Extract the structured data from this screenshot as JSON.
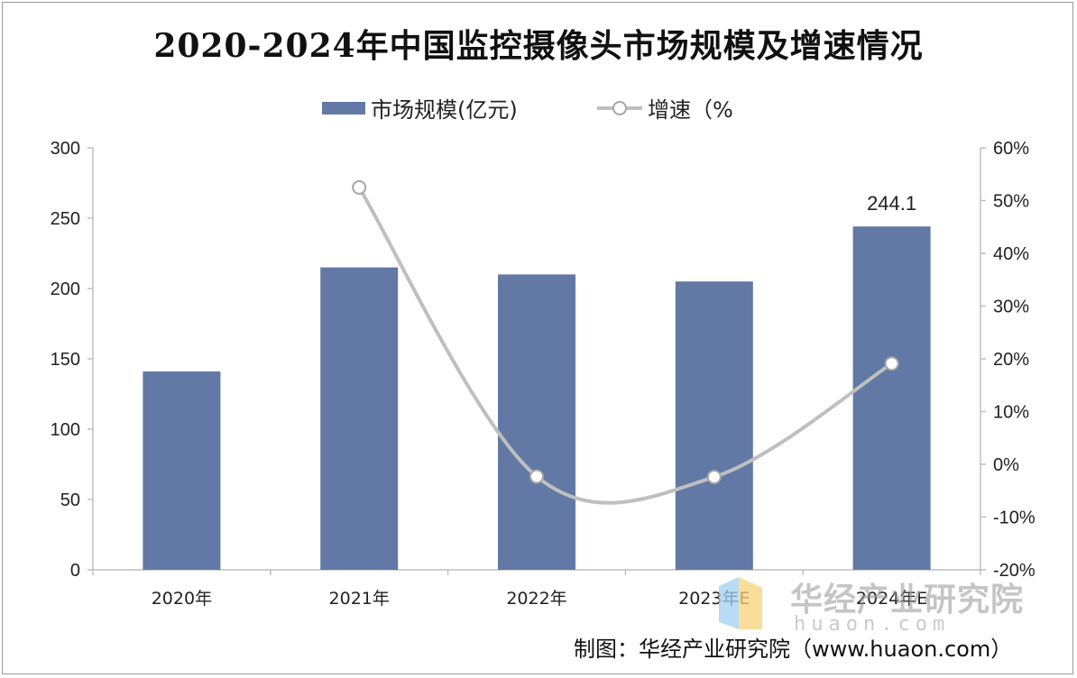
{
  "chart_data": {
    "type": "bar+line",
    "title": "2020-2024年中国监控摄像头市场规模及增速情况",
    "categories": [
      "2020年",
      "2021年",
      "2022年",
      "2023年E",
      "2024年E"
    ],
    "series": [
      {
        "name": "市场规模(亿元)",
        "type": "bar",
        "axis": "left",
        "color": "#6279a5",
        "values": [
          141,
          215,
          210,
          205,
          244.1
        ]
      },
      {
        "name": "增速(%)",
        "type": "line",
        "axis": "right",
        "color": "#bfbfbf",
        "values": [
          null,
          52.5,
          -2.3,
          -2.4,
          19.1
        ]
      }
    ],
    "left_axis": {
      "min": 0,
      "max": 300,
      "ticks": [
        "0",
        "50",
        "100",
        "150",
        "200",
        "250",
        "300"
      ]
    },
    "right_axis": {
      "min": -20,
      "max": 60,
      "ticks": [
        "-20%",
        "-10%",
        "0%",
        "10%",
        "20%",
        "30%",
        "40%",
        "50%",
        "60%"
      ]
    },
    "data_labels": [
      {
        "index": 4,
        "text": "244.1"
      }
    ],
    "legend": {
      "position": "top",
      "bar_label": "市场规模(亿元)",
      "line_label": "增速（%"
    },
    "grid": false
  },
  "source": "制图：华经产业研究院（www.huaon.com）",
  "watermark": {
    "text": "华经产业研究院",
    "sub": "huaon.com"
  }
}
